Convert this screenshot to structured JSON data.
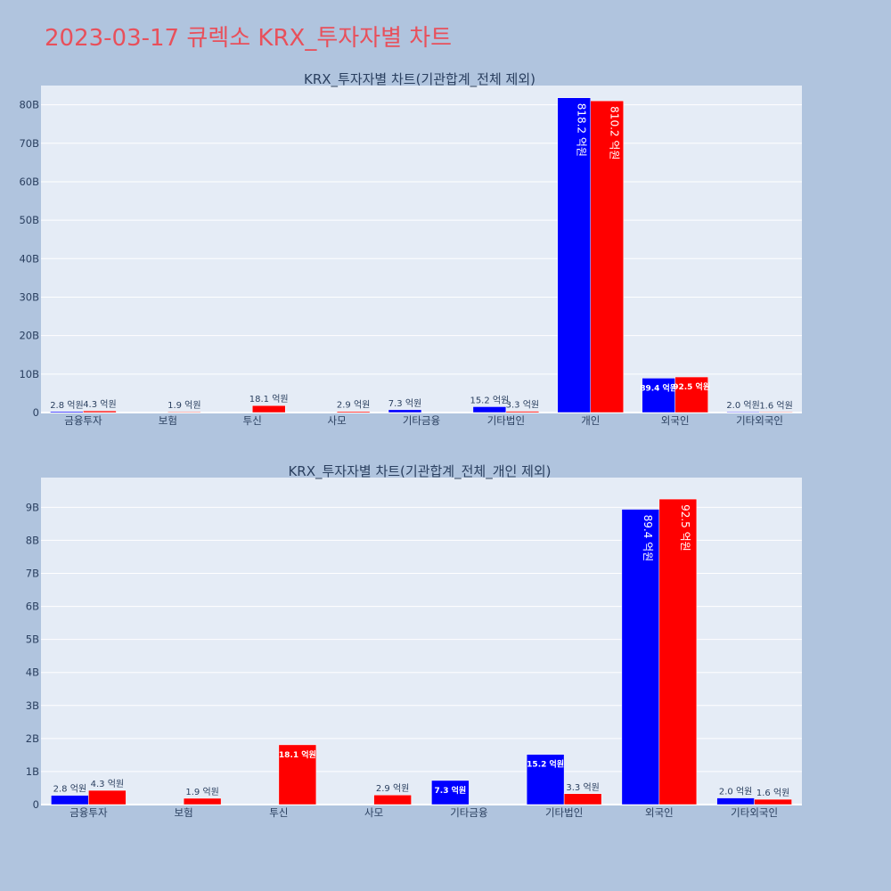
{
  "page": {
    "title": "2023-03-17 큐렉소 KRX_투자자별 차트"
  },
  "colors": {
    "buy": "#0000ff",
    "sell": "#ff0000",
    "plot_bg": "#e5ecf6",
    "page_bg": "#b0c4de",
    "title": "#e8505b"
  },
  "chart_data": [
    {
      "type": "bar",
      "title": "KRX_투자자별 차트(기관합계_전체 제외)",
      "categories": [
        "금융투자",
        "보험",
        "투신",
        "사모",
        "기타금융",
        "기타법인",
        "개인",
        "외국인",
        "기타외국인"
      ],
      "ylim": [
        0,
        85
      ],
      "yticks": [
        0,
        10,
        20,
        30,
        40,
        50,
        60,
        70,
        80
      ],
      "ytick_labels": [
        "0",
        "10B",
        "20B",
        "30B",
        "40B",
        "50B",
        "60B",
        "70B",
        "80B"
      ],
      "grid": true,
      "series": [
        {
          "color": "#0000ff",
          "values": [
            0.28,
            0,
            0,
            0,
            0.73,
            1.52,
            81.82,
            8.94,
            0.2
          ],
          "labels": [
            "2.8 억원",
            "",
            "",
            "",
            "7.3 억원",
            "15.2 억원",
            "818.2 억원",
            "89.4 억원",
            "2.0 억원"
          ]
        },
        {
          "color": "#ff0000",
          "values": [
            0.43,
            0.19,
            1.81,
            0.29,
            0,
            0.33,
            81.02,
            9.25,
            0.16
          ],
          "labels": [
            "4.3 억원",
            "1.9 억원",
            "18.1 억원",
            "2.9 억원",
            "",
            "3.3 억원",
            "810.2 억원",
            "92.5 억원",
            "1.6 억원"
          ]
        }
      ]
    },
    {
      "type": "bar",
      "title": "KRX_투자자별 차트(기관합계_전체_개인 제외)",
      "categories": [
        "금융투자",
        "보험",
        "투신",
        "사모",
        "기타금융",
        "기타법인",
        "외국인",
        "기타외국인"
      ],
      "ylim": [
        0,
        9.9
      ],
      "yticks": [
        0,
        1,
        2,
        3,
        4,
        5,
        6,
        7,
        8,
        9
      ],
      "ytick_labels": [
        "0",
        "1B",
        "2B",
        "3B",
        "4B",
        "5B",
        "6B",
        "7B",
        "8B",
        "9B"
      ],
      "grid": true,
      "series": [
        {
          "color": "#0000ff",
          "values": [
            0.28,
            0,
            0,
            0,
            0.73,
            1.52,
            8.94,
            0.2
          ],
          "labels": [
            "2.8 억원",
            "",
            "",
            "",
            "7.3 억원",
            "15.2 억원",
            "89.4 억원",
            "2.0 억원"
          ]
        },
        {
          "color": "#ff0000",
          "values": [
            0.43,
            0.19,
            1.81,
            0.29,
            0,
            0.33,
            9.25,
            0.16
          ],
          "labels": [
            "4.3 억원",
            "1.9 억원",
            "18.1 억원",
            "2.9 억원",
            "",
            "3.3 억원",
            "92.5 억원",
            "1.6 억원"
          ]
        }
      ]
    }
  ]
}
